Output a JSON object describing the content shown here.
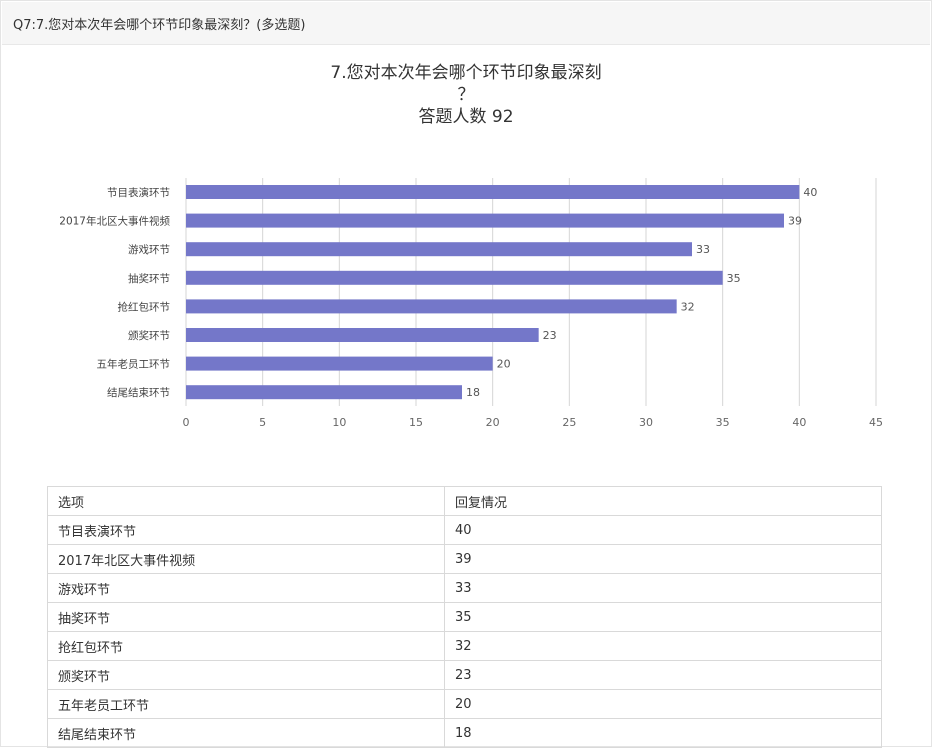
{
  "header": {
    "question": "Q7:7.您对本次年会哪个环节印象最深刻？(多选题)"
  },
  "chart_data": {
    "type": "bar",
    "orientation": "horizontal",
    "title": [
      "7.您对本次年会哪个环节印象最深刻",
      "？",
      "答题人数 92"
    ],
    "categories": [
      "节目表演环节",
      "2017年北区大事件视频",
      "游戏环节",
      "抽奖环节",
      "抢红包环节",
      "颁奖环节",
      "五年老员工环节",
      "结尾结束环节"
    ],
    "values": [
      40,
      39,
      33,
      35,
      32,
      23,
      20,
      18
    ],
    "xlim": [
      0,
      45
    ],
    "xticks": [
      0,
      5,
      10,
      15,
      20,
      25,
      30,
      35,
      40,
      45
    ],
    "bar_color": "#7477c9",
    "grid": true
  },
  "table": {
    "headers": [
      "选项",
      "回复情况"
    ],
    "rows": [
      [
        "节目表演环节",
        "40"
      ],
      [
        "2017年北区大事件视频",
        "39"
      ],
      [
        "游戏环节",
        "33"
      ],
      [
        "抽奖环节",
        "35"
      ],
      [
        "抢红包环节",
        "32"
      ],
      [
        "颁奖环节",
        "23"
      ],
      [
        "五年老员工环节",
        "20"
      ],
      [
        "结尾结束环节",
        "18"
      ]
    ]
  }
}
